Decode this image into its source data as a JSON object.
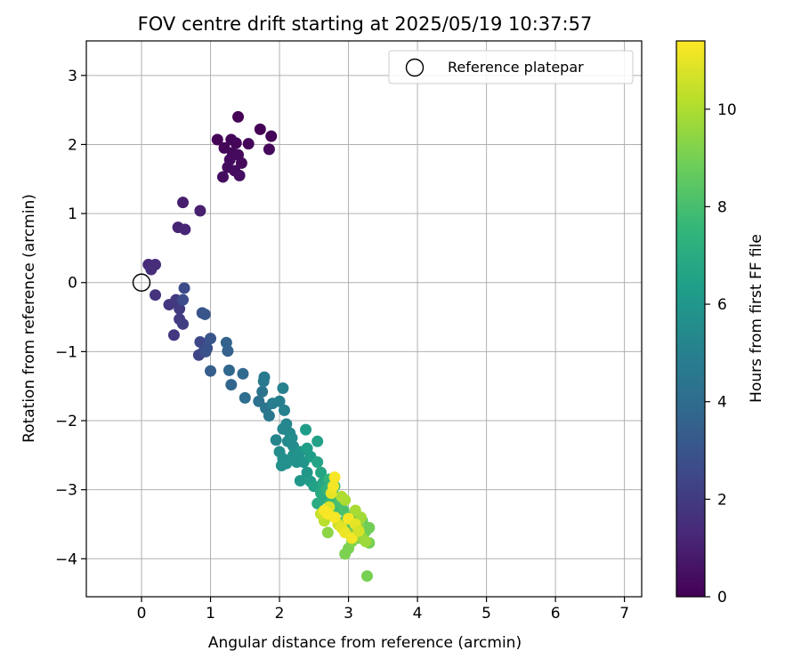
{
  "chart_data": {
    "type": "scatter",
    "title": "FOV centre drift starting at 2025/05/19 10:37:57",
    "xlabel": "Angular distance from reference (arcmin)",
    "ylabel": "Rotation from reference (arcmin)",
    "xlim": [
      -0.8,
      7.25
    ],
    "ylim": [
      -4.55,
      3.5
    ],
    "xticks": [
      0,
      1,
      2,
      3,
      4,
      5,
      6,
      7
    ],
    "yticks": [
      -4,
      -3,
      -2,
      -1,
      0,
      1,
      2,
      3
    ],
    "grid": true,
    "legend": {
      "placement": "top-right",
      "entries": [
        "Reference platepar"
      ]
    },
    "reference_point": {
      "x": 0,
      "y": 0
    },
    "colorbar": {
      "label": "Hours from first FF file",
      "range": [
        0,
        11.4
      ],
      "ticks": [
        0,
        2,
        4,
        6,
        8,
        10
      ],
      "colormap": "viridis"
    },
    "points": [
      [
        1.4,
        2.4,
        0.05
      ],
      [
        1.72,
        2.22,
        0.08
      ],
      [
        1.88,
        2.12,
        0.1
      ],
      [
        1.1,
        2.07,
        0.12
      ],
      [
        1.3,
        2.07,
        0.14
      ],
      [
        1.37,
        2.02,
        0.15
      ],
      [
        1.55,
        2.01,
        0.17
      ],
      [
        1.2,
        1.95,
        0.2
      ],
      [
        1.85,
        1.93,
        0.22
      ],
      [
        1.32,
        1.88,
        0.25
      ],
      [
        1.4,
        1.85,
        0.28
      ],
      [
        1.28,
        1.78,
        0.3
      ],
      [
        1.45,
        1.73,
        0.33
      ],
      [
        1.25,
        1.67,
        0.35
      ],
      [
        1.35,
        1.62,
        0.38
      ],
      [
        1.18,
        1.53,
        0.4
      ],
      [
        1.42,
        1.55,
        0.43
      ],
      [
        0.6,
        1.16,
        0.9
      ],
      [
        0.85,
        1.04,
        1.0
      ],
      [
        0.53,
        0.8,
        1.1
      ],
      [
        0.63,
        0.77,
        1.2
      ],
      [
        0.1,
        0.26,
        1.4
      ],
      [
        0.2,
        0.26,
        1.45
      ],
      [
        0.14,
        0.19,
        1.5
      ],
      [
        0.2,
        -0.18,
        1.7
      ],
      [
        0.4,
        -0.32,
        1.8
      ],
      [
        0.5,
        -0.25,
        1.9
      ],
      [
        0.55,
        -0.38,
        2.0
      ],
      [
        0.55,
        -0.53,
        2.05
      ],
      [
        0.6,
        -0.6,
        2.1
      ],
      [
        0.47,
        -0.76,
        1.85
      ],
      [
        0.62,
        -0.08,
        2.6
      ],
      [
        0.6,
        -0.25,
        2.7
      ],
      [
        0.88,
        -0.44,
        3.0
      ],
      [
        0.92,
        -0.46,
        3.05
      ],
      [
        0.85,
        -0.86,
        2.5
      ],
      [
        0.95,
        -0.95,
        2.8
      ],
      [
        0.9,
        -1.0,
        2.6
      ],
      [
        0.83,
        -1.05,
        2.4
      ],
      [
        0.93,
        -1.0,
        2.9
      ],
      [
        1.0,
        -0.81,
        3.0
      ],
      [
        1.0,
        -1.28,
        3.4
      ],
      [
        1.23,
        -0.87,
        3.6
      ],
      [
        1.25,
        -0.99,
        3.5
      ],
      [
        1.27,
        -1.27,
        3.8
      ],
      [
        1.3,
        -1.48,
        3.7
      ],
      [
        1.47,
        -1.32,
        3.9
      ],
      [
        1.5,
        -1.67,
        4.1
      ],
      [
        1.7,
        -1.72,
        4.3
      ],
      [
        1.75,
        -1.58,
        4.4
      ],
      [
        1.77,
        -1.43,
        4.6
      ],
      [
        1.78,
        -1.37,
        4.7
      ],
      [
        1.8,
        -1.82,
        4.5
      ],
      [
        1.85,
        -1.93,
        4.6
      ],
      [
        1.9,
        -1.75,
        4.8
      ],
      [
        2.0,
        -1.72,
        4.9
      ],
      [
        2.05,
        -1.53,
        5.0
      ],
      [
        2.07,
        -1.85,
        5.0
      ],
      [
        1.95,
        -2.28,
        5.2
      ],
      [
        2.05,
        -2.12,
        5.3
      ],
      [
        2.1,
        -2.05,
        5.3
      ],
      [
        2.15,
        -2.18,
        5.4
      ],
      [
        2.12,
        -2.3,
        5.4
      ],
      [
        2.18,
        -2.25,
        5.5
      ],
      [
        2.2,
        -2.37,
        5.5
      ],
      [
        2.0,
        -2.45,
        5.6
      ],
      [
        2.05,
        -2.55,
        5.6
      ],
      [
        2.1,
        -2.62,
        5.7
      ],
      [
        2.03,
        -2.65,
        5.7
      ],
      [
        2.2,
        -2.5,
        5.8
      ],
      [
        2.25,
        -2.6,
        5.8
      ],
      [
        2.3,
        -2.45,
        5.9
      ],
      [
        2.35,
        -2.6,
        5.9
      ],
      [
        2.3,
        -2.87,
        6.0
      ],
      [
        2.4,
        -2.75,
        6.0
      ],
      [
        2.45,
        -2.88,
        6.2
      ],
      [
        2.38,
        -2.13,
        6.3
      ],
      [
        2.45,
        -2.52,
        6.3
      ],
      [
        2.4,
        -2.4,
        6.4
      ],
      [
        2.5,
        -2.95,
        6.5
      ],
      [
        2.55,
        -2.3,
        6.5
      ],
      [
        2.55,
        -2.6,
        6.6
      ],
      [
        2.6,
        -2.75,
        6.7
      ],
      [
        2.63,
        -2.9,
        6.8
      ],
      [
        2.6,
        -3.05,
        6.9
      ],
      [
        2.65,
        -3.12,
        7.0
      ],
      [
        2.55,
        -3.2,
        7.0
      ],
      [
        2.6,
        -3.35,
        7.2
      ],
      [
        2.68,
        -3.0,
        7.3
      ],
      [
        2.72,
        -2.85,
        7.5
      ],
      [
        2.73,
        -3.2,
        7.6
      ],
      [
        2.77,
        -3.05,
        7.7
      ],
      [
        2.8,
        -3.3,
        7.8
      ],
      [
        2.8,
        -2.95,
        7.9
      ],
      [
        2.85,
        -3.15,
        8.0
      ],
      [
        2.9,
        -3.2,
        8.0
      ],
      [
        2.93,
        -3.3,
        8.1
      ],
      [
        2.95,
        -3.45,
        8.2
      ],
      [
        2.98,
        -3.6,
        8.3
      ],
      [
        3.0,
        -3.4,
        8.4
      ],
      [
        3.05,
        -3.55,
        8.5
      ],
      [
        3.1,
        -3.35,
        8.5
      ],
      [
        3.12,
        -3.6,
        8.6
      ],
      [
        3.15,
        -3.7,
        8.7
      ],
      [
        3.2,
        -3.45,
        8.7
      ],
      [
        3.22,
        -3.55,
        8.8
      ],
      [
        3.25,
        -3.6,
        8.8
      ],
      [
        3.3,
        -3.55,
        8.9
      ],
      [
        3.3,
        -3.77,
        9.0
      ],
      [
        3.27,
        -4.25,
        9.0
      ],
      [
        2.95,
        -3.93,
        9.1
      ],
      [
        3.0,
        -3.85,
        9.1
      ],
      [
        3.05,
        -3.75,
        9.2
      ],
      [
        3.1,
        -3.65,
        9.3
      ],
      [
        3.15,
        -3.5,
        9.3
      ],
      [
        3.2,
        -3.7,
        9.5
      ],
      [
        3.25,
        -3.75,
        9.7
      ],
      [
        3.18,
        -3.4,
        9.8
      ],
      [
        3.1,
        -3.3,
        9.9
      ],
      [
        2.95,
        -3.15,
        9.9
      ],
      [
        2.9,
        -3.1,
        10.0
      ],
      [
        2.7,
        -3.62,
        9.4
      ],
      [
        2.65,
        -3.45,
        10.2
      ],
      [
        2.6,
        -3.35,
        10.5
      ],
      [
        2.72,
        -3.25,
        10.8
      ],
      [
        2.75,
        -3.05,
        11.0
      ],
      [
        2.78,
        -2.95,
        11.2
      ],
      [
        2.8,
        -2.82,
        11.3
      ],
      [
        2.85,
        -3.5,
        10.6
      ],
      [
        2.9,
        -3.55,
        10.9
      ],
      [
        2.95,
        -3.62,
        11.1
      ],
      [
        3.0,
        -3.42,
        11.3
      ],
      [
        3.05,
        -3.7,
        11.2
      ],
      [
        3.1,
        -3.5,
        11.0
      ],
      [
        3.15,
        -3.6,
        10.7
      ],
      [
        2.7,
        -3.35,
        11.4
      ],
      [
        2.65,
        -3.3,
        11.3
      ],
      [
        2.8,
        -3.4,
        11.3
      ]
    ]
  }
}
